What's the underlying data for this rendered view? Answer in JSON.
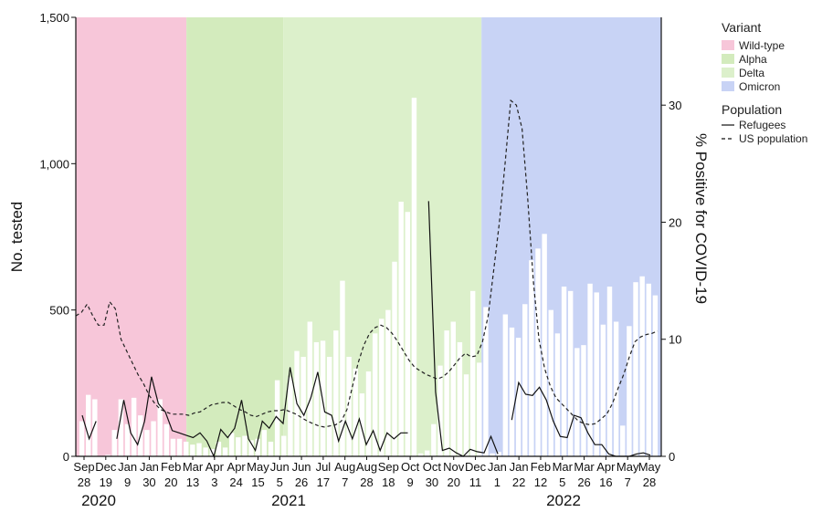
{
  "chart_data": {
    "type": "bar+line",
    "y_left": {
      "label": "No. tested",
      "ticks": [
        "0",
        "500",
        "1,000",
        "1,500"
      ],
      "range": [
        0,
        1500
      ]
    },
    "y_right": {
      "label": "% Positive for COVID-19",
      "ticks": [
        "0",
        "10",
        "20",
        "30"
      ],
      "range": [
        0,
        37.5
      ]
    },
    "x_month_labels": [
      "Sep",
      "Dec",
      "Jan",
      "Jan",
      "Feb",
      "Mar",
      "Apr",
      "Apr",
      "May",
      "Jun",
      "Jun",
      "Jul",
      "Aug",
      "Aug",
      "Sep",
      "Oct",
      "Oct",
      "Nov",
      "Dec",
      "Jan",
      "Jan",
      "Feb",
      "Mar",
      "Mar",
      "Apr",
      "May",
      "May"
    ],
    "x_day_labels": [
      "28",
      "19",
      "9",
      "30",
      "20",
      "13",
      "3",
      "24",
      "15",
      "5",
      "26",
      "17",
      "7",
      "28",
      "18",
      "9",
      "30",
      "20",
      "11",
      "1",
      "22",
      "12",
      "5",
      "26",
      "16",
      "7",
      "28"
    ],
    "years": [
      "2020",
      "2021",
      "2022"
    ],
    "variant_periods": [
      {
        "name": "Wild-type",
        "start_week": 0,
        "end_week": 24,
        "color": "#f7c6d9"
      },
      {
        "name": "Alpha",
        "start_week": 24,
        "end_week": 45,
        "color": "#d3ebbd"
      },
      {
        "name": "Delta",
        "start_week": 45,
        "end_week": 88,
        "color": "#dcf0cb"
      },
      {
        "name": "Omicron",
        "start_week": 88,
        "end_week": 127,
        "color": "#c8d3f5"
      }
    ],
    "tested_weekly": [
      120,
      210,
      195,
      0,
      5,
      90,
      195,
      110,
      200,
      140,
      90,
      120,
      195,
      110,
      60,
      60,
      50,
      40,
      45,
      30,
      25,
      50,
      30,
      80,
      65,
      70,
      55,
      60,
      90,
      50,
      260,
      70,
      270,
      360,
      340,
      460,
      390,
      395,
      340,
      430,
      600,
      340,
      300,
      215,
      290,
      420,
      470,
      500,
      665,
      870,
      835,
      1225,
      10,
      20,
      110,
      310,
      430,
      460,
      390,
      280,
      565,
      320,
      510,
      10,
      15,
      485,
      440,
      405,
      520,
      670,
      710,
      760,
      500,
      420,
      580,
      565,
      370,
      380,
      590,
      560,
      450,
      580,
      460,
      105,
      445,
      595,
      615,
      590,
      550
    ],
    "refugees_pct": [
      3.5,
      1.5,
      3.0,
      null,
      null,
      1.5,
      4.8,
      2.0,
      1.0,
      3.0,
      6.8,
      4.5,
      3.8,
      2.2,
      2.0,
      1.8,
      1.6,
      2.0,
      1.3,
      0.0,
      2.3,
      1.6,
      2.4,
      4.8,
      1.5,
      0.5,
      3.0,
      2.4,
      3.4,
      2.8,
      7.6,
      4.5,
      3.5,
      5.0,
      7.2,
      3.8,
      3.5,
      1.3,
      3.0,
      1.5,
      3.2,
      1.0,
      2.2,
      0.5,
      2.0,
      1.5,
      2.0,
      2.0,
      null,
      null,
      21.8,
      5.5,
      0.5,
      0.7,
      0.3,
      0.0,
      0.6,
      0.4,
      0.3,
      1.7,
      0.2,
      null,
      3.1,
      6.3,
      5.3,
      5.2,
      5.9,
      4.8,
      3.0,
      1.7,
      1.6,
      3.5,
      3.3,
      2.0,
      1.0,
      1.0,
      0.2,
      0.0,
      0.0,
      0.0,
      0.2,
      0.3,
      0.1
    ],
    "refugees_start_week": 2,
    "us_pct": [
      12.0,
      12.3,
      13.0,
      12.0,
      11.2,
      11.2,
      13.2,
      12.6,
      10.0,
      9.0,
      8.0,
      7.0,
      6.2,
      5.2,
      4.5,
      4.0,
      3.8,
      3.6,
      3.6,
      3.6,
      3.5,
      3.7,
      3.8,
      4.1,
      4.4,
      4.5,
      4.6,
      4.6,
      4.3,
      4.0,
      3.8,
      3.5,
      3.4,
      3.6,
      3.8,
      3.9,
      3.9,
      4.0,
      3.8,
      3.6,
      3.3,
      3.0,
      2.8,
      2.6,
      2.5,
      2.6,
      2.7,
      3.0,
      4.0,
      6.0,
      8.0,
      9.5,
      10.5,
      11.0,
      11.2,
      11.0,
      10.5,
      9.8,
      9.0,
      8.2,
      7.6,
      7.3,
      7.0,
      6.8,
      6.6,
      6.8,
      7.2,
      7.8,
      8.4,
      8.8,
      8.5,
      8.6,
      9.8,
      12.0,
      16.0,
      20.0,
      25.0,
      30.4,
      30.0,
      28.0,
      22.0,
      15.0,
      10.0,
      7.5,
      6.0,
      5.0,
      4.5,
      4.0,
      3.5,
      3.0,
      2.8,
      2.7,
      2.8,
      3.2,
      3.6,
      4.5,
      5.8,
      7.0,
      8.5,
      9.8,
      10.2,
      10.4,
      10.5,
      10.7
    ],
    "legend": {
      "variant_heading": "Variant",
      "variant_items": [
        "Wild-type",
        "Alpha",
        "Delta",
        "Omicron"
      ],
      "population_heading": "Population",
      "population_items": [
        "Refugees",
        "US population"
      ]
    },
    "grid": false
  }
}
